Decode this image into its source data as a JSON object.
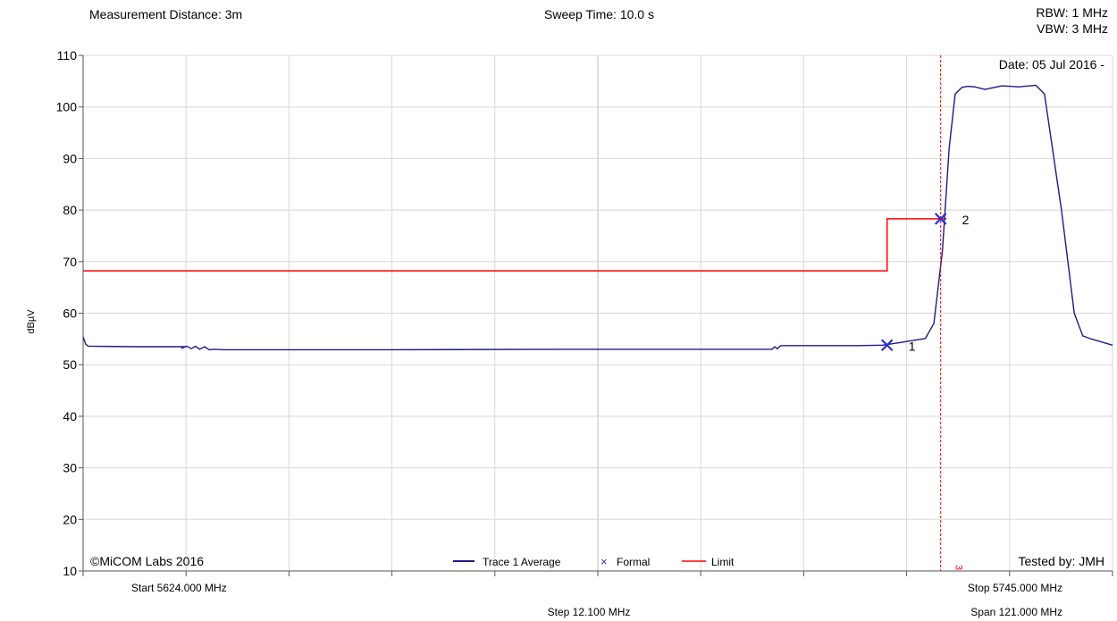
{
  "header": {
    "measurement_distance": "Measurement Distance: 3m",
    "sweep_time": "Sweep Time: 10.0 s",
    "rbw": "RBW: 1 MHz",
    "vbw": "VBW: 3 MHz"
  },
  "date_text": "Date: 05 Jul 2016 -",
  "copyright": "©MiCOM Labs 2016",
  "tested_by": "Tested by: JMH",
  "footer": {
    "start": "Start 5624.000 MHz",
    "stop": "Stop 5745.000 MHz",
    "step": "Step 12.100 MHz",
    "span": "Span 121.000 MHz"
  },
  "colors": {
    "trace": "#1c1c86",
    "limit": "#ff0000",
    "marker": "#2b2bd6",
    "grid": "#d8d8d8"
  },
  "chart_data": {
    "type": "line",
    "ylabel": "dBµV",
    "xlim": [
      5624.0,
      5745.0
    ],
    "ylim": [
      10,
      110
    ],
    "yticks": [
      10,
      20,
      30,
      40,
      50,
      60,
      70,
      80,
      90,
      100,
      110
    ],
    "x_step": 12.1,
    "legend": [
      {
        "label": "Trace 1 Average",
        "kind": "line",
        "color": "#1c1c86"
      },
      {
        "label": "Formal",
        "kind": "x",
        "color": "#2b2bd6"
      },
      {
        "label": "Limit",
        "kind": "line",
        "color": "#ff0000"
      }
    ],
    "legend_position": "bottom-center",
    "series": [
      {
        "name": "Trace 1 Average",
        "x": [
          5624.0,
          5624.3,
          5624.6,
          5630,
          5636,
          5635.6,
          5636.2,
          5636.7,
          5637.2,
          5637.7,
          5638.3,
          5638.8,
          5639.5,
          5640.5,
          5660,
          5680,
          5700,
          5705,
          5705.3,
          5705.6,
          5706,
          5715,
          5718,
          5720,
          5723,
          5724,
          5725,
          5725.8,
          5726.5,
          5727.3,
          5728,
          5728.8,
          5730,
          5732,
          5734,
          5736,
          5737,
          5739,
          5740.5,
          5741.5,
          5742.5,
          5745
        ],
        "y": [
          55.4,
          54.0,
          53.6,
          53.5,
          53.5,
          53.2,
          53.6,
          53.1,
          53.6,
          53.0,
          53.5,
          52.9,
          53.0,
          52.9,
          52.9,
          53.0,
          53.0,
          53.0,
          53.5,
          53.1,
          53.7,
          53.7,
          53.8,
          54.3,
          55.1,
          58.0,
          72.0,
          92.0,
          102.5,
          103.8,
          104.0,
          103.9,
          103.4,
          104.1,
          103.9,
          104.2,
          102.5,
          80.0,
          60.0,
          55.6,
          55.0,
          53.8
        ]
      },
      {
        "name": "Limit",
        "x": [
          5624.0,
          5718.5,
          5718.5,
          5725.5
        ],
        "y": [
          68.2,
          68.2,
          78.3,
          78.3
        ]
      }
    ],
    "markers": [
      {
        "label": "1",
        "x": 5718.5,
        "y": 53.8
      },
      {
        "label": "2",
        "x": 5724.8,
        "y": 78.3
      }
    ],
    "vline": {
      "x": 5724.8,
      "label": "3"
    }
  }
}
